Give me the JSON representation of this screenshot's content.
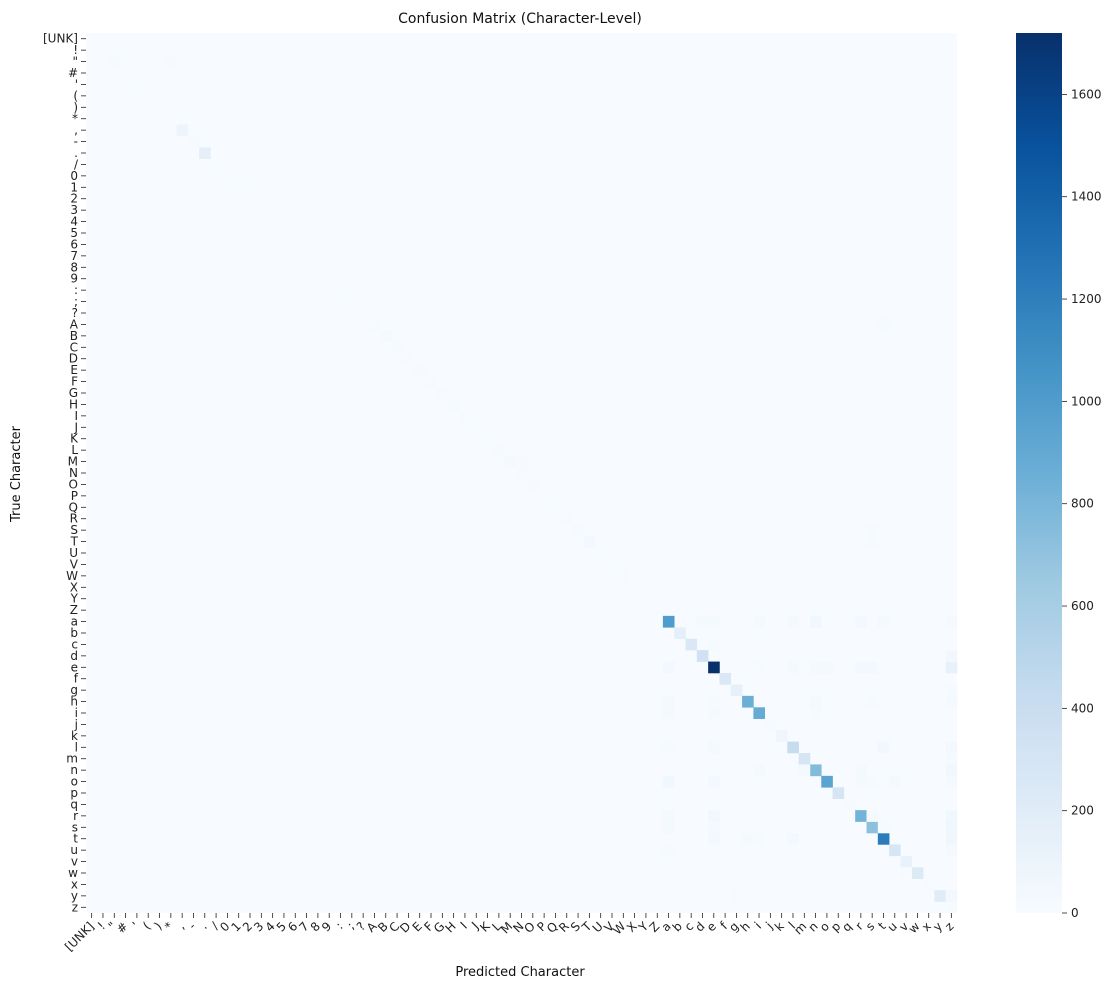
{
  "chart_data": {
    "type": "heatmap",
    "title": "Confusion Matrix (Character-Level)",
    "xlabel": "Predicted Character",
    "ylabel": "True Character",
    "labels": [
      "[UNK]",
      "!",
      "\"",
      "#",
      "'",
      "(",
      ")",
      "*",
      ",",
      "-",
      ".",
      "/",
      "0",
      "1",
      "2",
      "3",
      "4",
      "5",
      "6",
      "7",
      "8",
      "9",
      ":",
      ";",
      "?",
      "A",
      "B",
      "C",
      "D",
      "E",
      "F",
      "G",
      "H",
      "I",
      "J",
      "K",
      "L",
      "M",
      "N",
      "O",
      "P",
      "Q",
      "R",
      "S",
      "T",
      "U",
      "V",
      "W",
      "X",
      "Y",
      "Z",
      "a",
      "b",
      "c",
      "d",
      "e",
      "f",
      "g",
      "h",
      "i",
      "j",
      "k",
      "l",
      "m",
      "n",
      "o",
      "p",
      "q",
      "r",
      "s",
      "t",
      "u",
      "v",
      "w",
      "x",
      "y",
      "z"
    ],
    "colormap": "Blues",
    "colorbar": {
      "min": 0,
      "max": 1720,
      "ticks": [
        0,
        200,
        400,
        600,
        800,
        1000,
        1200,
        1400,
        1600
      ]
    },
    "diagonal": {
      "[UNK]": 0,
      "!": 0,
      "\"": 20,
      "#": 0,
      "'": 5,
      "(": 0,
      ")": 0,
      "*": 0,
      ",": 90,
      "-": 20,
      ".": 160,
      "/": 5,
      "0": 3,
      "1": 5,
      "2": 2,
      "3": 2,
      "4": 2,
      "5": 2,
      "6": 2,
      "7": 2,
      "8": 2,
      "9": 3,
      ":": 5,
      ";": 3,
      "?": 3,
      "A": 15,
      "B": 25,
      "C": 8,
      "D": 8,
      "E": 8,
      "F": 8,
      "G": 10,
      "H": 15,
      "I": 20,
      "J": 5,
      "K": 5,
      "L": 8,
      "M": 25,
      "N": 10,
      "O": 8,
      "P": 20,
      "Q": 3,
      "R": 10,
      "S": 20,
      "T": 35,
      "U": 5,
      "V": 5,
      "W": 8,
      "X": 2,
      "Y": 3,
      "Z": 2,
      "a": 1000,
      "b": 160,
      "c": 250,
      "d": 350,
      "e": 1720,
      "f": 250,
      "g": 150,
      "h": 860,
      "i": 880,
      "j": 10,
      "k": 80,
      "l": 420,
      "m": 300,
      "n": 760,
      "o": 940,
      "p": 300,
      "q": 20,
      "r": 820,
      "s": 720,
      "t": 1220,
      "u": 280,
      "v": 120,
      "w": 230,
      "x": 10,
      "y": 200,
      "z": 10
    },
    "off_diagonal": [
      {
        "true": "a",
        "pred": "n",
        "value": 60
      },
      {
        "true": "a",
        "pred": "d",
        "value": 30
      },
      {
        "true": "a",
        "pred": "r",
        "value": 35
      },
      {
        "true": "a",
        "pred": "t",
        "value": 30
      },
      {
        "true": "a",
        "pred": "i",
        "value": 25
      },
      {
        "true": "a",
        "pred": "l",
        "value": 25
      },
      {
        "true": "a",
        "pred": "z",
        "value": 30
      },
      {
        "true": "a",
        "pred": "e",
        "value": 25
      },
      {
        "true": "e",
        "pred": "z",
        "value": 130
      },
      {
        "true": "e",
        "pred": "a",
        "value": 40
      },
      {
        "true": "e",
        "pred": "r",
        "value": 40
      },
      {
        "true": "e",
        "pred": "s",
        "value": 35
      },
      {
        "true": "e",
        "pred": "n",
        "value": 30
      },
      {
        "true": "e",
        "pred": "o",
        "value": 25
      },
      {
        "true": "e",
        "pred": "l",
        "value": 25
      },
      {
        "true": "e",
        "pred": "i",
        "value": 20
      },
      {
        "true": "d",
        "pred": "z",
        "value": 50
      },
      {
        "true": "h",
        "pred": "z",
        "value": 30
      },
      {
        "true": "h",
        "pred": "a",
        "value": 25
      },
      {
        "true": "h",
        "pred": "e",
        "value": 20
      },
      {
        "true": "h",
        "pred": "n",
        "value": 25
      },
      {
        "true": "h",
        "pred": "s",
        "value": 20
      },
      {
        "true": "i",
        "pred": "a",
        "value": 25
      },
      {
        "true": "i",
        "pred": "e",
        "value": 25
      },
      {
        "true": "i",
        "pred": "n",
        "value": 20
      },
      {
        "true": "l",
        "pred": "t",
        "value": 50
      },
      {
        "true": "l",
        "pred": "e",
        "value": 30
      },
      {
        "true": "l",
        "pred": "z",
        "value": 40
      },
      {
        "true": "l",
        "pred": "a",
        "value": 20
      },
      {
        "true": "m",
        "pred": "z",
        "value": 20
      },
      {
        "true": "n",
        "pred": "z",
        "value": 60
      },
      {
        "true": "n",
        "pred": "i",
        "value": 30
      },
      {
        "true": "n",
        "pred": "m",
        "value": 30
      },
      {
        "true": "n",
        "pred": "r",
        "value": 30
      },
      {
        "true": "o",
        "pred": "a",
        "value": 60
      },
      {
        "true": "o",
        "pred": "e",
        "value": 35
      },
      {
        "true": "o",
        "pred": "r",
        "value": 30
      },
      {
        "true": "o",
        "pred": "u",
        "value": 25
      },
      {
        "true": "o",
        "pred": "s",
        "value": 20
      },
      {
        "true": "o",
        "pred": "z",
        "value": 30
      },
      {
        "true": "r",
        "pred": "e",
        "value": 50
      },
      {
        "true": "r",
        "pred": "z",
        "value": 60
      },
      {
        "true": "r",
        "pred": "a",
        "value": 25
      },
      {
        "true": "r",
        "pred": "s",
        "value": 25
      },
      {
        "true": "s",
        "pred": "z",
        "value": 70
      },
      {
        "true": "s",
        "pred": "e",
        "value": 30
      },
      {
        "true": "s",
        "pred": "a",
        "value": 25
      },
      {
        "true": "s",
        "pred": "t",
        "value": 20
      },
      {
        "true": "t",
        "pred": "z",
        "value": 70
      },
      {
        "true": "t",
        "pred": "e",
        "value": 40
      },
      {
        "true": "t",
        "pred": "l",
        "value": 40
      },
      {
        "true": "t",
        "pred": "h",
        "value": 30
      },
      {
        "true": "t",
        "pred": "i",
        "value": 20
      },
      {
        "true": "u",
        "pred": "z",
        "value": 25
      },
      {
        "true": "u",
        "pred": "a",
        "value": 20
      },
      {
        "true": "y",
        "pred": "z",
        "value": 35
      },
      {
        "true": "y",
        "pred": "g",
        "value": 20
      },
      {
        "true": "w",
        "pred": "v",
        "value": 20
      },
      {
        "true": "c",
        "pred": "e",
        "value": 20
      },
      {
        "true": "g",
        "pred": "z",
        "value": 20
      },
      {
        "true": "\"",
        "pred": "*",
        "value": 10
      },
      {
        "true": "A",
        "pred": "t",
        "value": 15
      },
      {
        "true": "T",
        "pred": "s",
        "value": 15
      },
      {
        "true": "S",
        "pred": "s",
        "value": 15
      },
      {
        "true": "M",
        "pred": "N",
        "value": 10
      }
    ]
  }
}
